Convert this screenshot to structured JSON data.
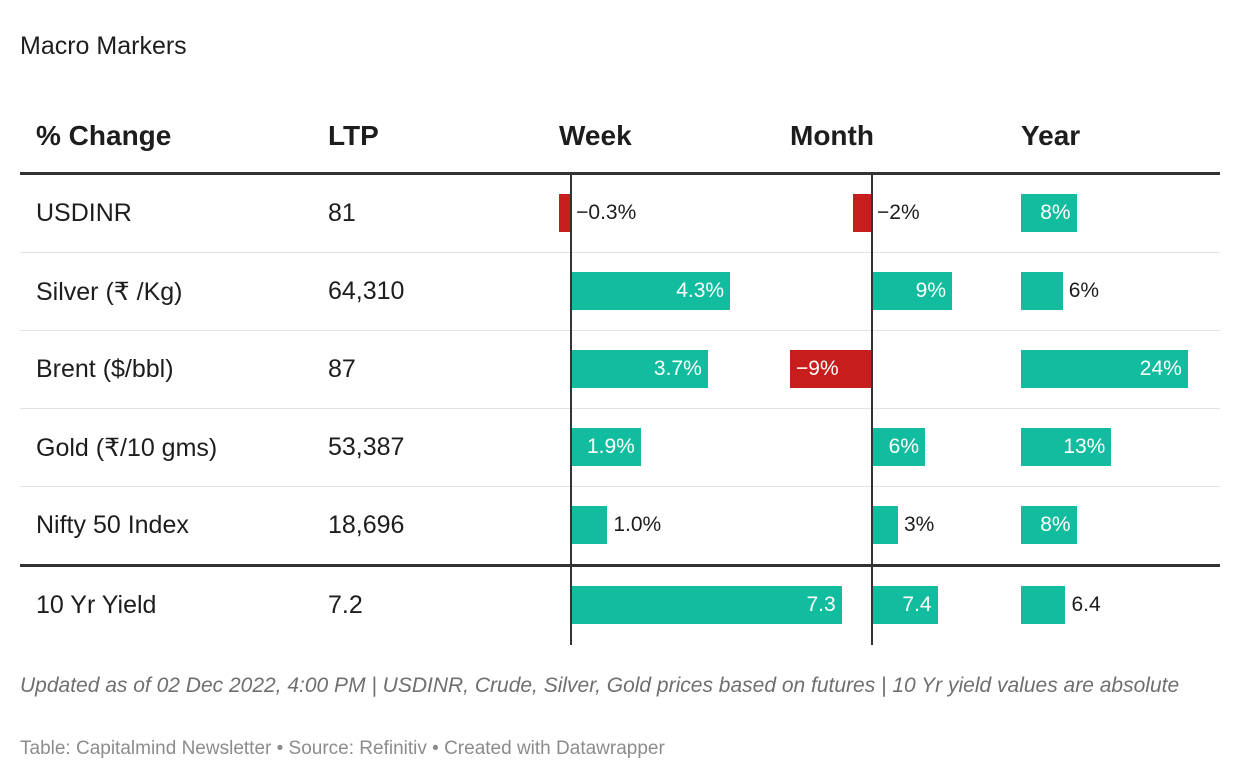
{
  "title": "Macro Markers",
  "columns": {
    "name": "% Change",
    "ltp": "LTP",
    "week": "Week",
    "month": "Month",
    "year": "Year"
  },
  "chart_data": {
    "type": "table",
    "rows": [
      {
        "name": "USDINR",
        "ltp": "81",
        "week": -0.3,
        "week_label": "−0.3%",
        "month": -2,
        "month_label": "−2%",
        "year": 8,
        "year_label": "8%"
      },
      {
        "name": "Silver (₹ /Kg)",
        "ltp": "64,310",
        "week": 4.3,
        "week_label": "4.3%",
        "month": 9,
        "month_label": "9%",
        "year": 6,
        "year_label": "6%"
      },
      {
        "name": "Brent ($/bbl)",
        "ltp": "87",
        "week": 3.7,
        "week_label": "3.7%",
        "month": -9,
        "month_label": "−9%",
        "year": 24,
        "year_label": "24%"
      },
      {
        "name": "Gold (₹/10 gms)",
        "ltp": "53,387",
        "week": 1.9,
        "week_label": "1.9%",
        "month": 6,
        "month_label": "6%",
        "year": 13,
        "year_label": "13%"
      },
      {
        "name": "Nifty 50 Index",
        "ltp": "18,696",
        "week": 1.0,
        "week_label": "1.0%",
        "month": 3,
        "month_label": "3%",
        "year": 8,
        "year_label": "8%"
      },
      {
        "name": "10 Yr Yield",
        "ltp": "7.2",
        "week": 7.3,
        "week_label": "7.3",
        "month": 7.4,
        "month_label": "7.4",
        "year": 6.4,
        "year_label": "6.4"
      }
    ],
    "colors": {
      "positive": "#12bc9f",
      "negative": "#c71e1d"
    }
  },
  "notes": "Updated as of 02 Dec 2022, 4:00 PM | USDINR, Crude, Silver, Gold prices based on futures | 10 Yr yield values are absolute",
  "credit": "Table: Capitalmind Newsletter • Source: Refinitiv • Created with Datawrapper"
}
